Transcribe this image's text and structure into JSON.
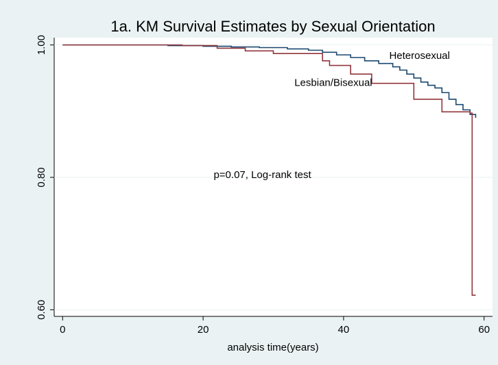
{
  "chart_data": {
    "type": "step",
    "title": "1a. KM Survival Estimates by Sexual Orientation",
    "x_label": "analysis time(years)",
    "annotation": "p=0.07, Log-rank test",
    "xlim": [
      -1.2,
      61.2
    ],
    "xticks": [
      0,
      20,
      40,
      60
    ],
    "ylim": [
      0.59,
      1.011
    ],
    "yticks": [
      {
        "value": 0.6,
        "label": "0.60"
      },
      {
        "value": 0.8,
        "label": "0.80"
      },
      {
        "value": 1.0,
        "label": "1.00"
      }
    ],
    "grid": true,
    "series": [
      {
        "name": "Heterosexual",
        "color": "#1a476f",
        "x": [
          0,
          15,
          20,
          24,
          28,
          32,
          35,
          37,
          39,
          41,
          43,
          45,
          47,
          48,
          49,
          50,
          51,
          52,
          53,
          54,
          55,
          56,
          57,
          58,
          58.8
        ],
        "values": [
          1.0,
          0.999,
          0.998,
          0.997,
          0.996,
          0.994,
          0.992,
          0.989,
          0.985,
          0.981,
          0.976,
          0.972,
          0.967,
          0.962,
          0.956,
          0.95,
          0.944,
          0.939,
          0.935,
          0.928,
          0.918,
          0.91,
          0.902,
          0.895,
          0.89
        ]
      },
      {
        "name": "Lesbian/Bisexual",
        "color": "#90353b",
        "x": [
          0,
          17,
          22,
          26,
          30,
          37,
          38,
          41,
          44,
          50,
          54,
          58,
          58.3,
          58.8
        ],
        "values": [
          1.0,
          0.999,
          0.995,
          0.991,
          0.987,
          0.976,
          0.969,
          0.956,
          0.942,
          0.918,
          0.899,
          0.897,
          0.622,
          0.622
        ]
      }
    ]
  }
}
